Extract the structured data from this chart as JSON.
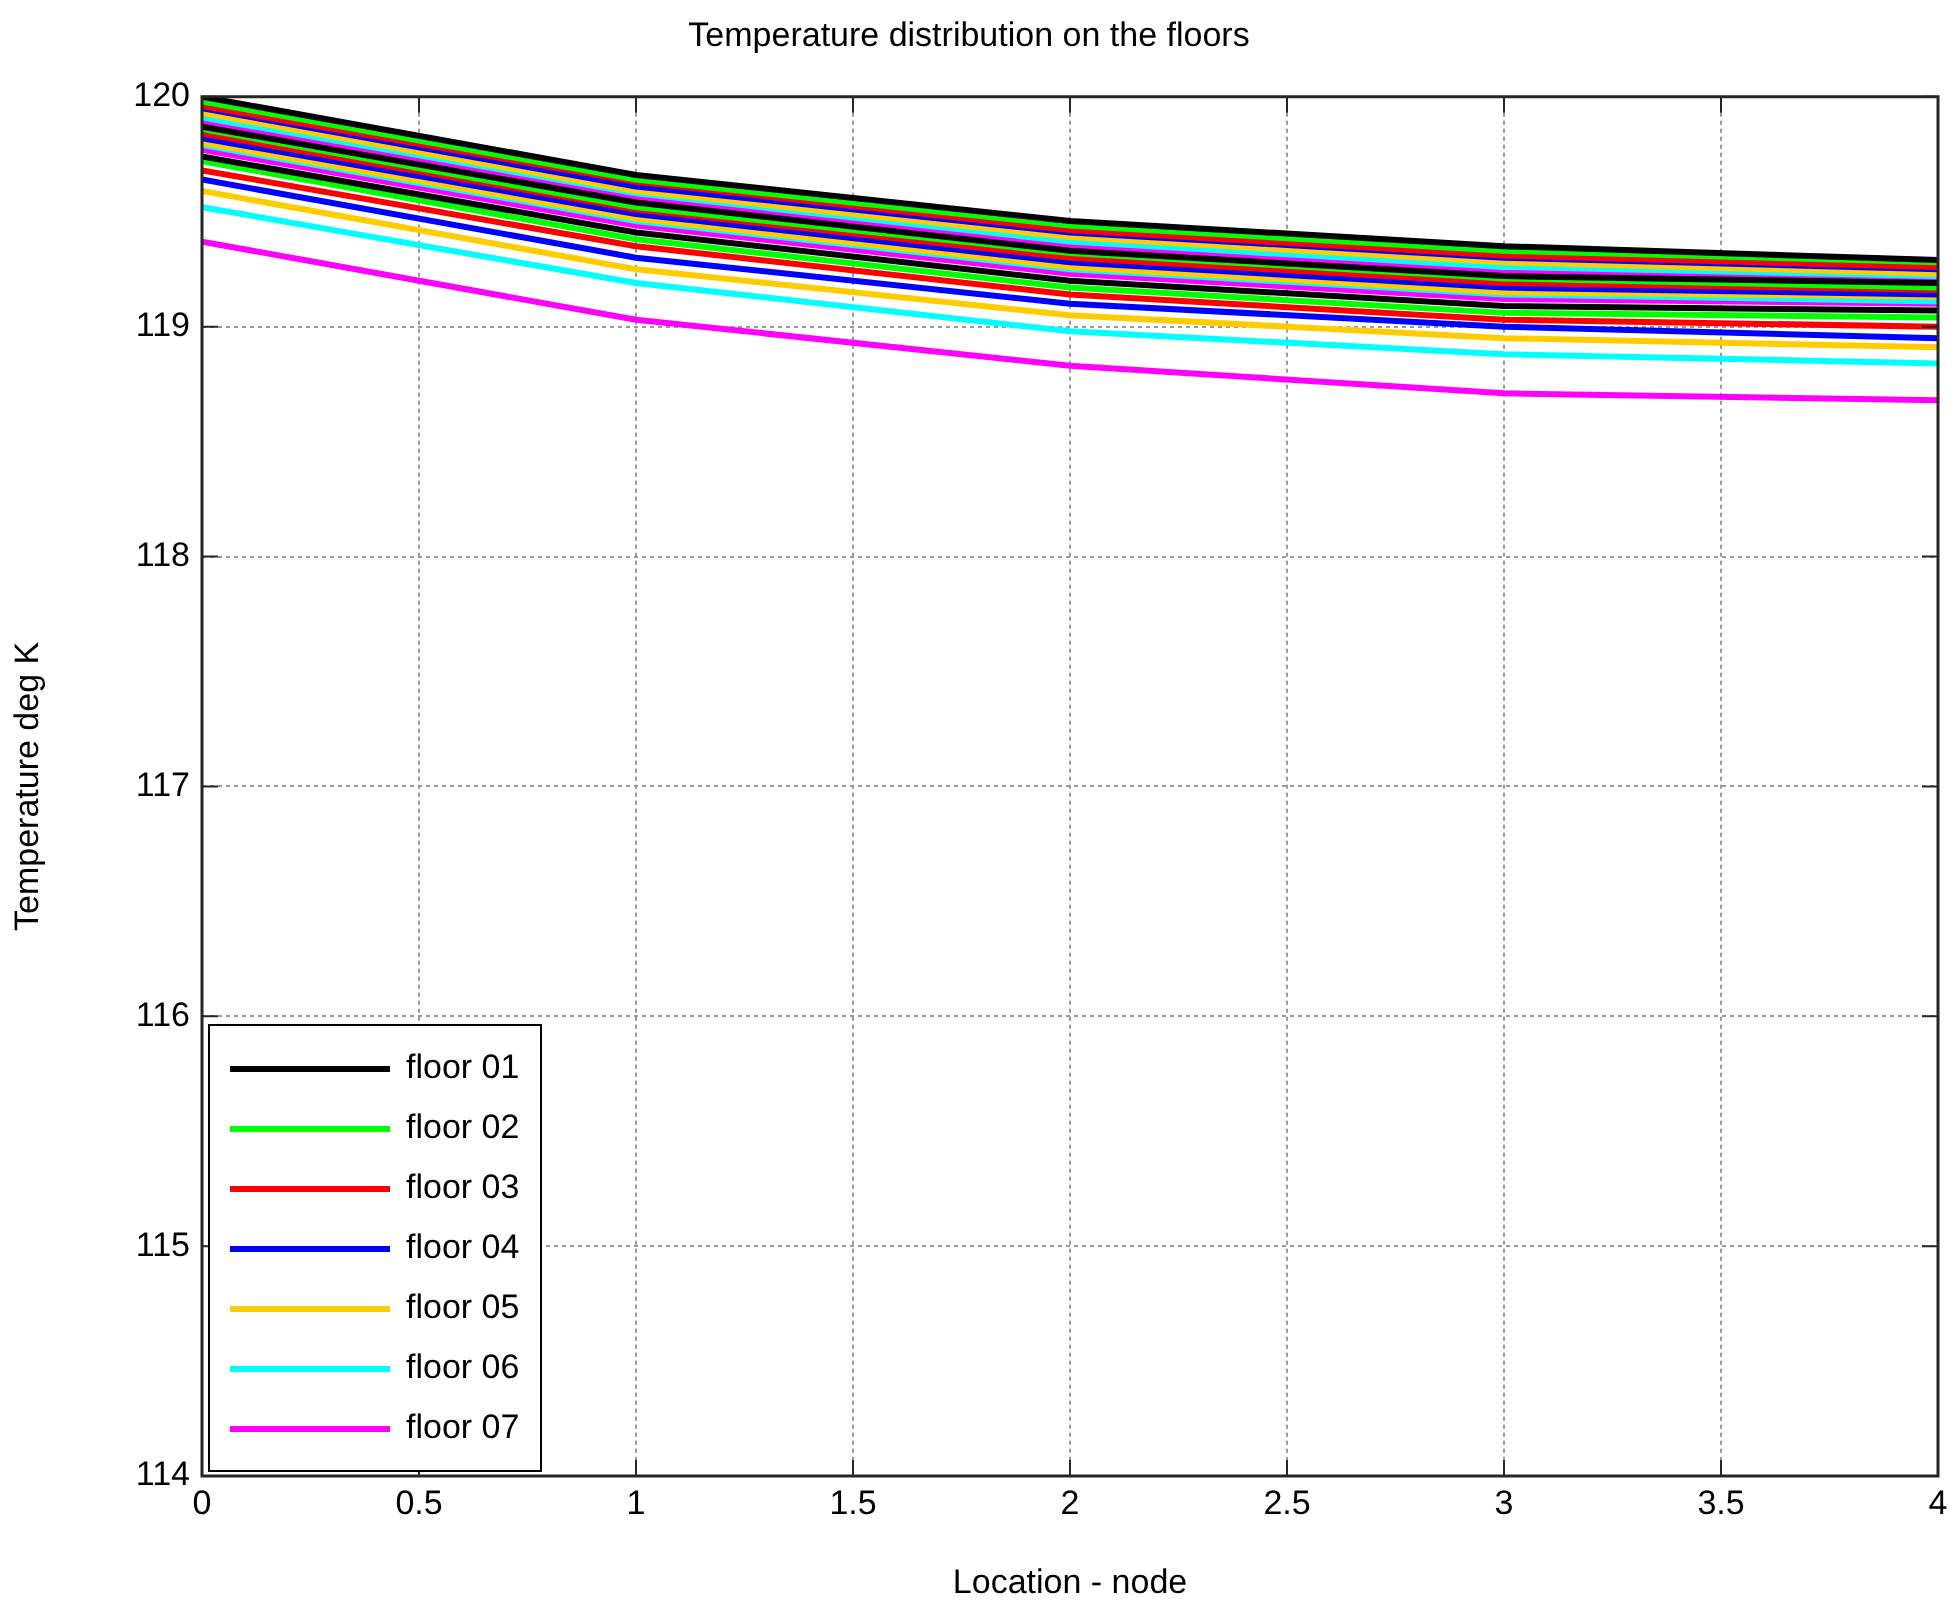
{
  "chart_data": {
    "type": "line",
    "title": "Temperature distribution on the floors",
    "xlabel": "Location - node",
    "ylabel": "Temperature deg K",
    "x": [
      0,
      1,
      2,
      3,
      4
    ],
    "xlim": [
      0,
      4
    ],
    "xticks": [
      0,
      0.5,
      1,
      1.5,
      2,
      2.5,
      3,
      3.5,
      4
    ],
    "ylim": [
      114,
      120
    ],
    "yticks": [
      114,
      115,
      116,
      117,
      118,
      119,
      120
    ],
    "grid": true,
    "legend": "bottom left",
    "marker": "none",
    "line_style": "solid",
    "series": [
      {
        "name": "floor 01",
        "color": "#000000",
        "values": [
          119.74,
          119.41,
          119.2,
          119.09,
          119.07
        ]
      },
      {
        "name": "floor 02",
        "color": "#00ff00",
        "values": [
          119.72,
          119.38,
          119.17,
          119.06,
          119.04
        ]
      },
      {
        "name": "floor 03",
        "color": "#ff0000",
        "values": [
          119.68,
          119.35,
          119.14,
          119.03,
          119.0
        ]
      },
      {
        "name": "floor 04",
        "color": "#0000ff",
        "values": [
          119.64,
          119.3,
          119.1,
          119.0,
          118.95
        ]
      },
      {
        "name": "floor 05",
        "color": "#ffcc00",
        "values": [
          119.59,
          119.25,
          119.05,
          118.95,
          118.91
        ]
      },
      {
        "name": "floor 06",
        "color": "#00ffff",
        "values": [
          119.52,
          119.19,
          118.98,
          118.88,
          118.84
        ]
      },
      {
        "name": "floor 07",
        "color": "#ff00ff",
        "values": [
          119.37,
          119.03,
          118.83,
          118.71,
          118.68
        ]
      },
      {
        "color": "#000000",
        "values": [
          119.87,
          119.54,
          119.33,
          119.22,
          119.19
        ]
      },
      {
        "color": "#00ff00",
        "values": [
          119.86,
          119.52,
          119.32,
          119.21,
          119.17
        ]
      },
      {
        "color": "#ff0000",
        "values": [
          119.84,
          119.51,
          119.3,
          119.19,
          119.16
        ]
      },
      {
        "color": "#0000ff",
        "values": [
          119.82,
          119.49,
          119.28,
          119.17,
          119.14
        ]
      },
      {
        "color": "#ffcc00",
        "values": [
          119.8,
          119.47,
          119.26,
          119.15,
          119.13
        ]
      },
      {
        "color": "#00ffff",
        "values": [
          119.79,
          119.46,
          119.25,
          119.14,
          119.11
        ]
      },
      {
        "color": "#ff00ff",
        "values": [
          119.77,
          119.44,
          119.23,
          119.12,
          119.1
        ]
      },
      {
        "color": "#000000",
        "values": [
          120.0,
          119.66,
          119.46,
          119.35,
          119.29
        ]
      },
      {
        "color": "#00ff00",
        "values": [
          119.98,
          119.64,
          119.44,
          119.33,
          119.28
        ]
      },
      {
        "color": "#ff0000",
        "values": [
          119.96,
          119.63,
          119.42,
          119.31,
          119.26
        ]
      },
      {
        "color": "#0000ff",
        "values": [
          119.95,
          119.61,
          119.41,
          119.3,
          119.25
        ]
      },
      {
        "color": "#ffcc00",
        "values": [
          119.93,
          119.59,
          119.39,
          119.28,
          119.23
        ]
      },
      {
        "color": "#00ffff",
        "values": [
          119.91,
          119.58,
          119.37,
          119.26,
          119.22
        ]
      },
      {
        "color": "#ff00ff",
        "values": [
          119.89,
          119.56,
          119.35,
          119.24,
          119.2
        ]
      }
    ]
  }
}
